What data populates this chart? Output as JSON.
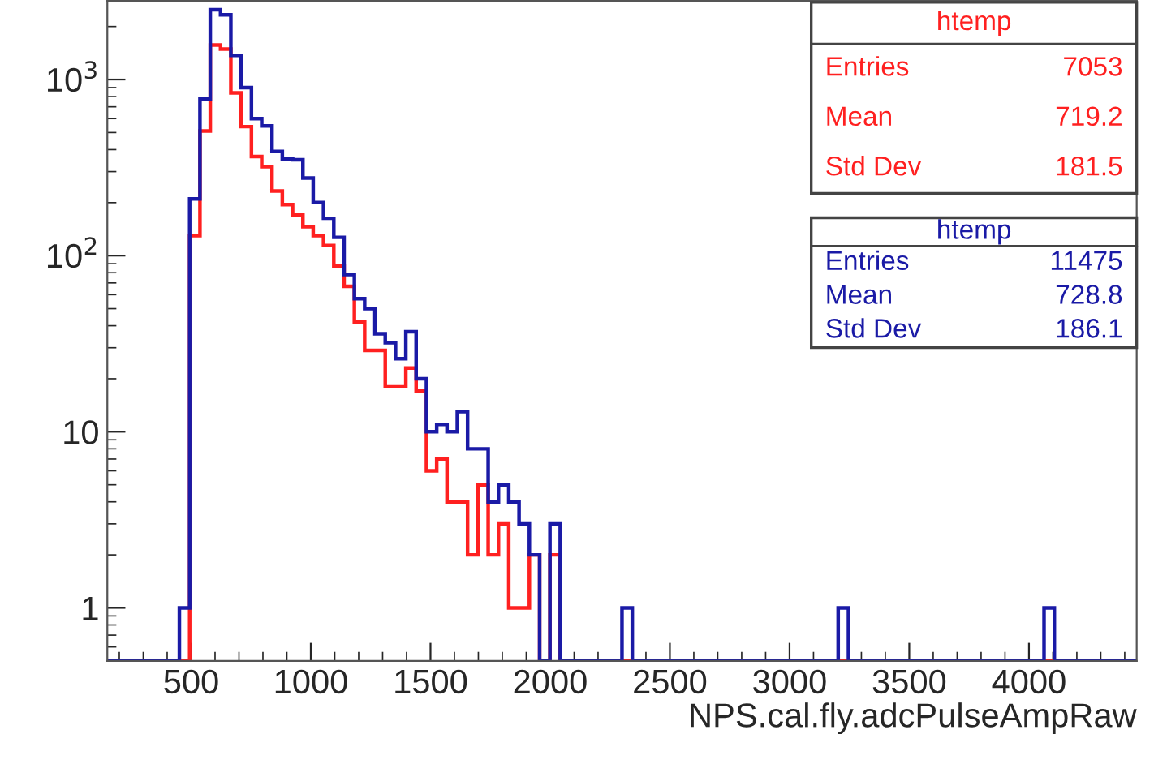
{
  "chart_data": {
    "type": "histogram",
    "xlabel": "NPS.cal.fly.adcPulseAmpRaw",
    "bins": [
      150,
      193,
      236,
      279,
      322,
      365,
      408,
      451,
      494,
      537,
      580,
      623,
      666,
      709,
      752,
      795,
      838,
      881,
      924,
      967,
      1010,
      1053,
      1096,
      1139,
      1182,
      1225,
      1268,
      1311,
      1354,
      1397,
      1440,
      1483,
      1526,
      1569,
      1612,
      1655,
      1698,
      1741,
      1784,
      1827,
      1870,
      1913,
      1956,
      1999,
      2042,
      2085,
      2128,
      2171,
      2214,
      2257,
      2300,
      2343,
      2386,
      2429,
      2472,
      2515,
      2558,
      2601,
      2644,
      2687,
      2730,
      2773,
      2816,
      2859,
      2902,
      2945,
      2988,
      3031,
      3074,
      3117,
      3160,
      3203,
      3246,
      3289,
      3332,
      3375,
      3418,
      3461,
      3504,
      3547,
      3590,
      3633,
      3676,
      3719,
      3762,
      3805,
      3848,
      3891,
      3934,
      3977,
      4020,
      4063,
      4106,
      4149,
      4192,
      4235,
      4278,
      4321,
      4364,
      4407,
      4450
    ],
    "series": [
      {
        "color": "#ff2020",
        "values": [
          null,
          null,
          null,
          null,
          null,
          null,
          null,
          null,
          130,
          510,
          1570,
          1490,
          840,
          540,
          365,
          320,
          233,
          195,
          170,
          146,
          130,
          114,
          87,
          67,
          42,
          29,
          29,
          18,
          18,
          23,
          17,
          6,
          7,
          4,
          4,
          2,
          5,
          2,
          3,
          1,
          1,
          2,
          null,
          2,
          null,
          null,
          null,
          null,
          null,
          null,
          null,
          null,
          null,
          null,
          null,
          null,
          null,
          null,
          null,
          null,
          null,
          null,
          null,
          null,
          null,
          null,
          null,
          null,
          null,
          null,
          null,
          null,
          null,
          null,
          null,
          null,
          null,
          null,
          null,
          null,
          null,
          null,
          null,
          null,
          null,
          null,
          null,
          null,
          null,
          null,
          null,
          null,
          null,
          null,
          null,
          null,
          null,
          null,
          null,
          null
        ]
      },
      {
        "color": "#1a1aa6",
        "values": [
          null,
          null,
          null,
          null,
          null,
          null,
          null,
          1,
          210,
          776,
          2490,
          2330,
          1370,
          900,
          600,
          545,
          390,
          353,
          350,
          276,
          200,
          163,
          127,
          78,
          57,
          50,
          36,
          32,
          26,
          37,
          20,
          10,
          11,
          10,
          13,
          8,
          8,
          4,
          5,
          4,
          3,
          2,
          null,
          3,
          null,
          null,
          null,
          null,
          null,
          null,
          1,
          null,
          null,
          null,
          null,
          null,
          null,
          null,
          null,
          null,
          null,
          null,
          null,
          null,
          null,
          null,
          null,
          null,
          null,
          null,
          null,
          1,
          null,
          null,
          null,
          null,
          null,
          null,
          null,
          null,
          null,
          null,
          null,
          null,
          null,
          null,
          null,
          null,
          null,
          null,
          null,
          1,
          null,
          null,
          null,
          null,
          null,
          null,
          null,
          null
        ]
      }
    ],
    "xlim": [
      150,
      4450
    ],
    "xticks": [
      500,
      1000,
      1500,
      2000,
      2500,
      3000,
      3500,
      4000
    ],
    "log": true,
    "ylim": [
      0.5,
      2800
    ],
    "yticks": [
      1,
      10,
      {
        "value": 100,
        "label": "10$^{2}$"
      },
      {
        "value": 1000,
        "label": "10$^{3}$"
      }
    ],
    "grid": false,
    "annotations": [
      "htemp",
      "Entries",
      "7053",
      "Mean",
      "719.2",
      "Std Dev",
      "181.5",
      "htemp",
      "Entries",
      "11475",
      "Mean",
      "728.8",
      "Std Dev",
      "186.1"
    ]
  }
}
